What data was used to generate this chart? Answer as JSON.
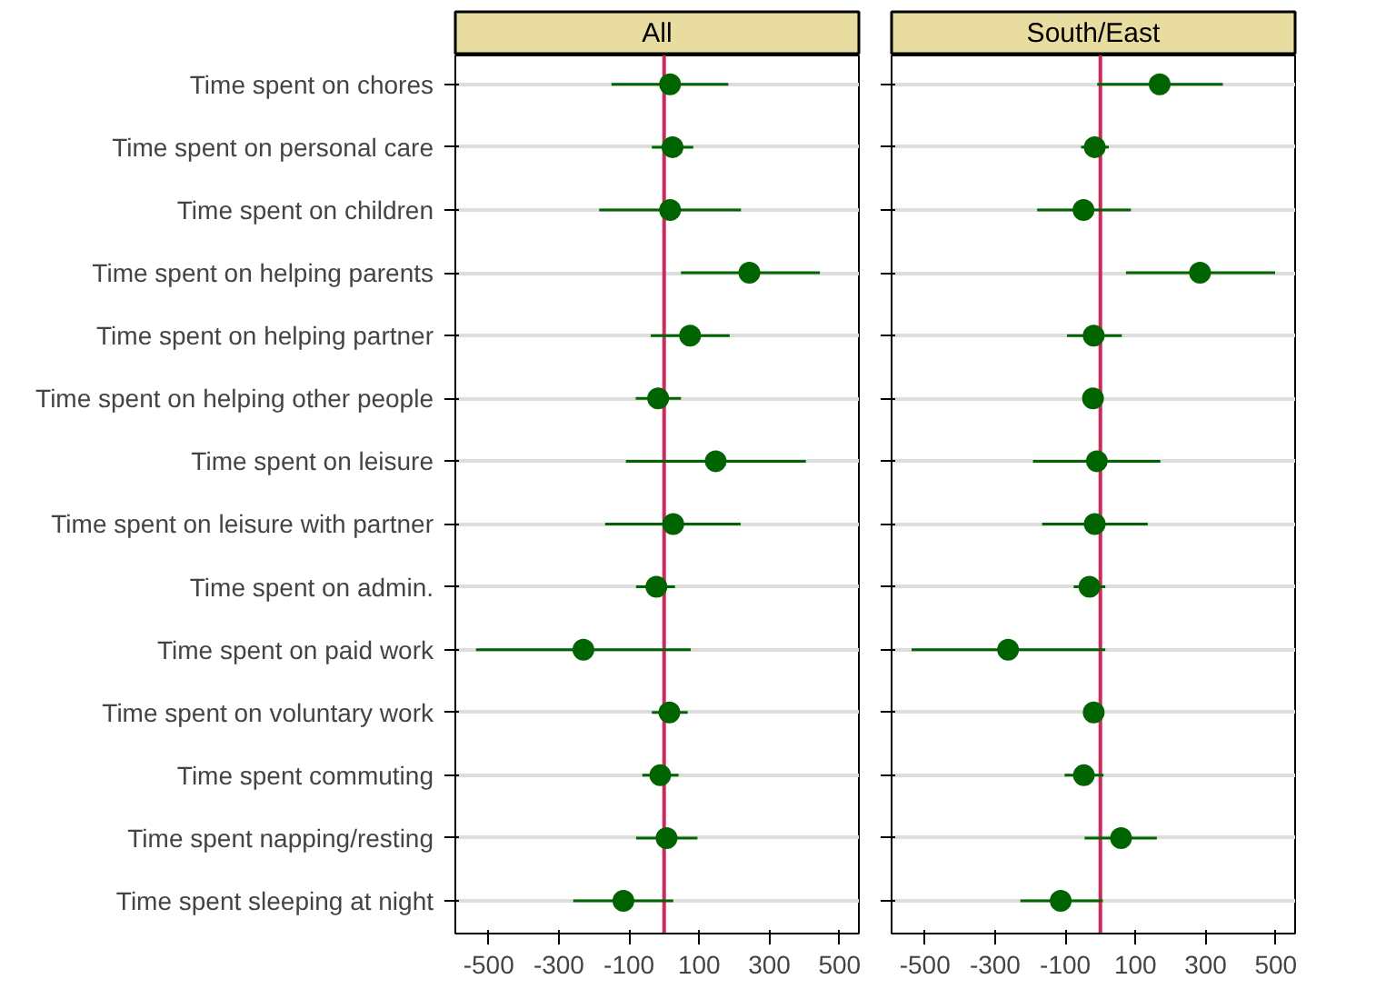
{
  "chart_data": [
    {
      "type": "scatter",
      "orientation": "horizontal",
      "title": "All",
      "marker": "circle",
      "grid": "y",
      "categories": [
        "Time spent on chores",
        "Time spent on personal care",
        "Time spent on children",
        "Time spent on helping parents",
        "Time spent on helping partner",
        "Time spent on helping other people",
        "Time spent on leisure",
        "Time spent on leisure with partner",
        "Time spent on admin.",
        "Time spent on paid work",
        "Time spent on voluntary work",
        "Time spent commuting",
        "Time spent napping/resting",
        "Time spent sleeping at night"
      ],
      "series": [
        {
          "color": "#006400",
          "values": [
            17,
            24,
            17,
            243,
            74,
            -17,
            147,
            26,
            -22,
            -230,
            15,
            -11,
            7,
            -116
          ],
          "errors": [
            [
              -150,
              183
            ],
            [
              -35,
              83
            ],
            [
              -185,
              219
            ],
            [
              48,
              444
            ],
            [
              -38,
              187
            ],
            [
              -81,
              48
            ],
            [
              -109,
              404
            ],
            [
              -168,
              218
            ],
            [
              -80,
              31
            ],
            [
              -536,
              76
            ],
            [
              -35,
              67
            ],
            [
              -62,
              41
            ],
            [
              -80,
              95
            ],
            [
              -259,
              26
            ]
          ]
        }
      ],
      "xlim": [
        -595,
        555
      ],
      "xticks": [
        -500,
        -300,
        -100,
        100,
        300,
        500
      ],
      "ref_lines": [
        {
          "axis": "x",
          "value": 0,
          "label": null,
          "color": "#cc2a5a"
        }
      ]
    },
    {
      "type": "scatter",
      "orientation": "horizontal",
      "title": "South/East",
      "marker": "circle",
      "grid": "y",
      "tick_labels": "x",
      "series": [
        {
          "color": "#006400",
          "values": [
            169,
            -16,
            -48,
            284,
            -19,
            -21,
            -10,
            -16,
            -31,
            -263,
            -19,
            -47,
            59,
            -113
          ],
          "errors": [
            [
              -9,
              349
            ],
            [
              -55,
              24
            ],
            [
              -180,
              87
            ],
            [
              73,
              498
            ],
            [
              -95,
              61
            ],
            [
              -35,
              -7
            ],
            [
              -192,
              171
            ],
            [
              -166,
              135
            ],
            [
              -76,
              14
            ],
            [
              -538,
              14
            ],
            [
              -35,
              -3
            ],
            [
              -102,
              9
            ],
            [
              -45,
              161
            ],
            [
              -228,
              7
            ]
          ]
        }
      ],
      "xlim": [
        -595,
        555
      ],
      "xticks": [
        -500,
        -300,
        -100,
        100,
        300,
        500
      ],
      "ref_lines": [
        {
          "axis": "x",
          "value": 0,
          "label": null,
          "color": "#cc2a5a"
        }
      ]
    }
  ]
}
